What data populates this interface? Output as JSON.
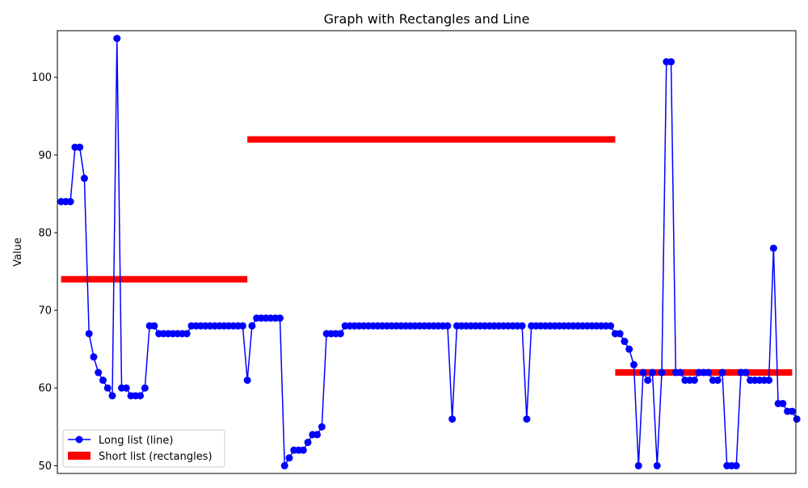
{
  "chart_data": {
    "type": "line",
    "title": "Graph with Rectangles and Line",
    "xlabel": "",
    "ylabel": "Value",
    "ylim": [
      49,
      106
    ],
    "xlim": [
      -0.8,
      157.8
    ],
    "y_ticks": [
      50,
      60,
      70,
      80,
      90,
      100
    ],
    "x_ticks_shown": false,
    "grid": false,
    "legend_position": "lower-left",
    "line_color": "#0000ff",
    "rect_color": "#ff0000",
    "series": [
      {
        "name": "Long list (line)",
        "kind": "line",
        "x_start": 0,
        "values": [
          84,
          84,
          84,
          91,
          91,
          87,
          67,
          64,
          62,
          61,
          60,
          59,
          105,
          60,
          60,
          59,
          59,
          59,
          60,
          68,
          68,
          67,
          67,
          67,
          67,
          67,
          67,
          67,
          68,
          68,
          68,
          68,
          68,
          68,
          68,
          68,
          68,
          68,
          68,
          68,
          61,
          68,
          69,
          69,
          69,
          69,
          69,
          69,
          50,
          51,
          52,
          52,
          52,
          53,
          54,
          54,
          55,
          67,
          67,
          67,
          67,
          68,
          68,
          68,
          68,
          68,
          68,
          68,
          68,
          68,
          68,
          68,
          68,
          68,
          68,
          68,
          68,
          68,
          68,
          68,
          68,
          68,
          68,
          68,
          56,
          68,
          68,
          68,
          68,
          68,
          68,
          68,
          68,
          68,
          68,
          68,
          68,
          68,
          68,
          68,
          56,
          68,
          68,
          68,
          68,
          68,
          68,
          68,
          68,
          68,
          68,
          68,
          68,
          68,
          68,
          68,
          68,
          68,
          68,
          67,
          67,
          66,
          65,
          63,
          50,
          62,
          61,
          62,
          50,
          62,
          102,
          102,
          62,
          62,
          61,
          61,
          61,
          62,
          62,
          62,
          61,
          61,
          62,
          50,
          50,
          50,
          62,
          62,
          61,
          61,
          61,
          61,
          61,
          78,
          58,
          58,
          57,
          57,
          56
        ]
      },
      {
        "name": "Short list (rectangles)",
        "kind": "rectangles",
        "segments": [
          {
            "x_start": 0,
            "x_end": 40,
            "value": 74
          },
          {
            "x_start": 40,
            "x_end": 119,
            "value": 92
          },
          {
            "x_start": 119,
            "x_end": 157,
            "value": 62
          }
        ]
      }
    ]
  }
}
